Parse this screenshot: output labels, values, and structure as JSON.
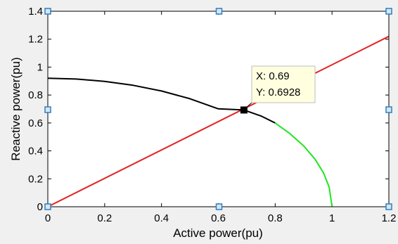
{
  "chart_data": {
    "type": "line",
    "title": "",
    "xlabel": "Active power(pu)",
    "ylabel": "Reactive power(pu)",
    "xlim": [
      0,
      1.2
    ],
    "ylim": [
      0,
      1.4
    ],
    "xticks": [
      "0",
      "0.2",
      "0.4",
      "0.6",
      "0.8",
      "1",
      "1.2"
    ],
    "yticks": [
      "0",
      "0.2",
      "0.4",
      "0.6",
      "0.8",
      "1",
      "1.2",
      "1.4"
    ],
    "grid": false,
    "series": [
      {
        "color": "#e32020",
        "x": [
          0,
          1.2
        ],
        "y": [
          0,
          1.2204
        ]
      },
      {
        "color": "#000000",
        "x": [
          0,
          0.1,
          0.2,
          0.3,
          0.4,
          0.5,
          0.6,
          0.69,
          0.75,
          0.8
        ],
        "y": [
          0.92,
          0.9146,
          0.8978,
          0.8696,
          0.8288,
          0.7736,
          0.7009,
          0.6928,
          0.65,
          0.6
        ]
      },
      {
        "color": "#22e422",
        "x": [
          0.8,
          0.85,
          0.9,
          0.94,
          0.97,
          0.99,
          1.0
        ],
        "y": [
          0.6,
          0.5268,
          0.4359,
          0.3412,
          0.2431,
          0.1411,
          0.0
        ]
      }
    ],
    "datatip": {
      "x": 0.69,
      "y": 0.6928,
      "lines": [
        "X: 0.69",
        "Y: 0.6928"
      ]
    },
    "colors": {
      "figure_bg": "#f0f0f0",
      "axes_bg": "#ffffff",
      "handle_fill": "#d6e6f5",
      "handle_stroke": "#2e7fc2",
      "datatip_bg": "#ffffe0"
    }
  }
}
